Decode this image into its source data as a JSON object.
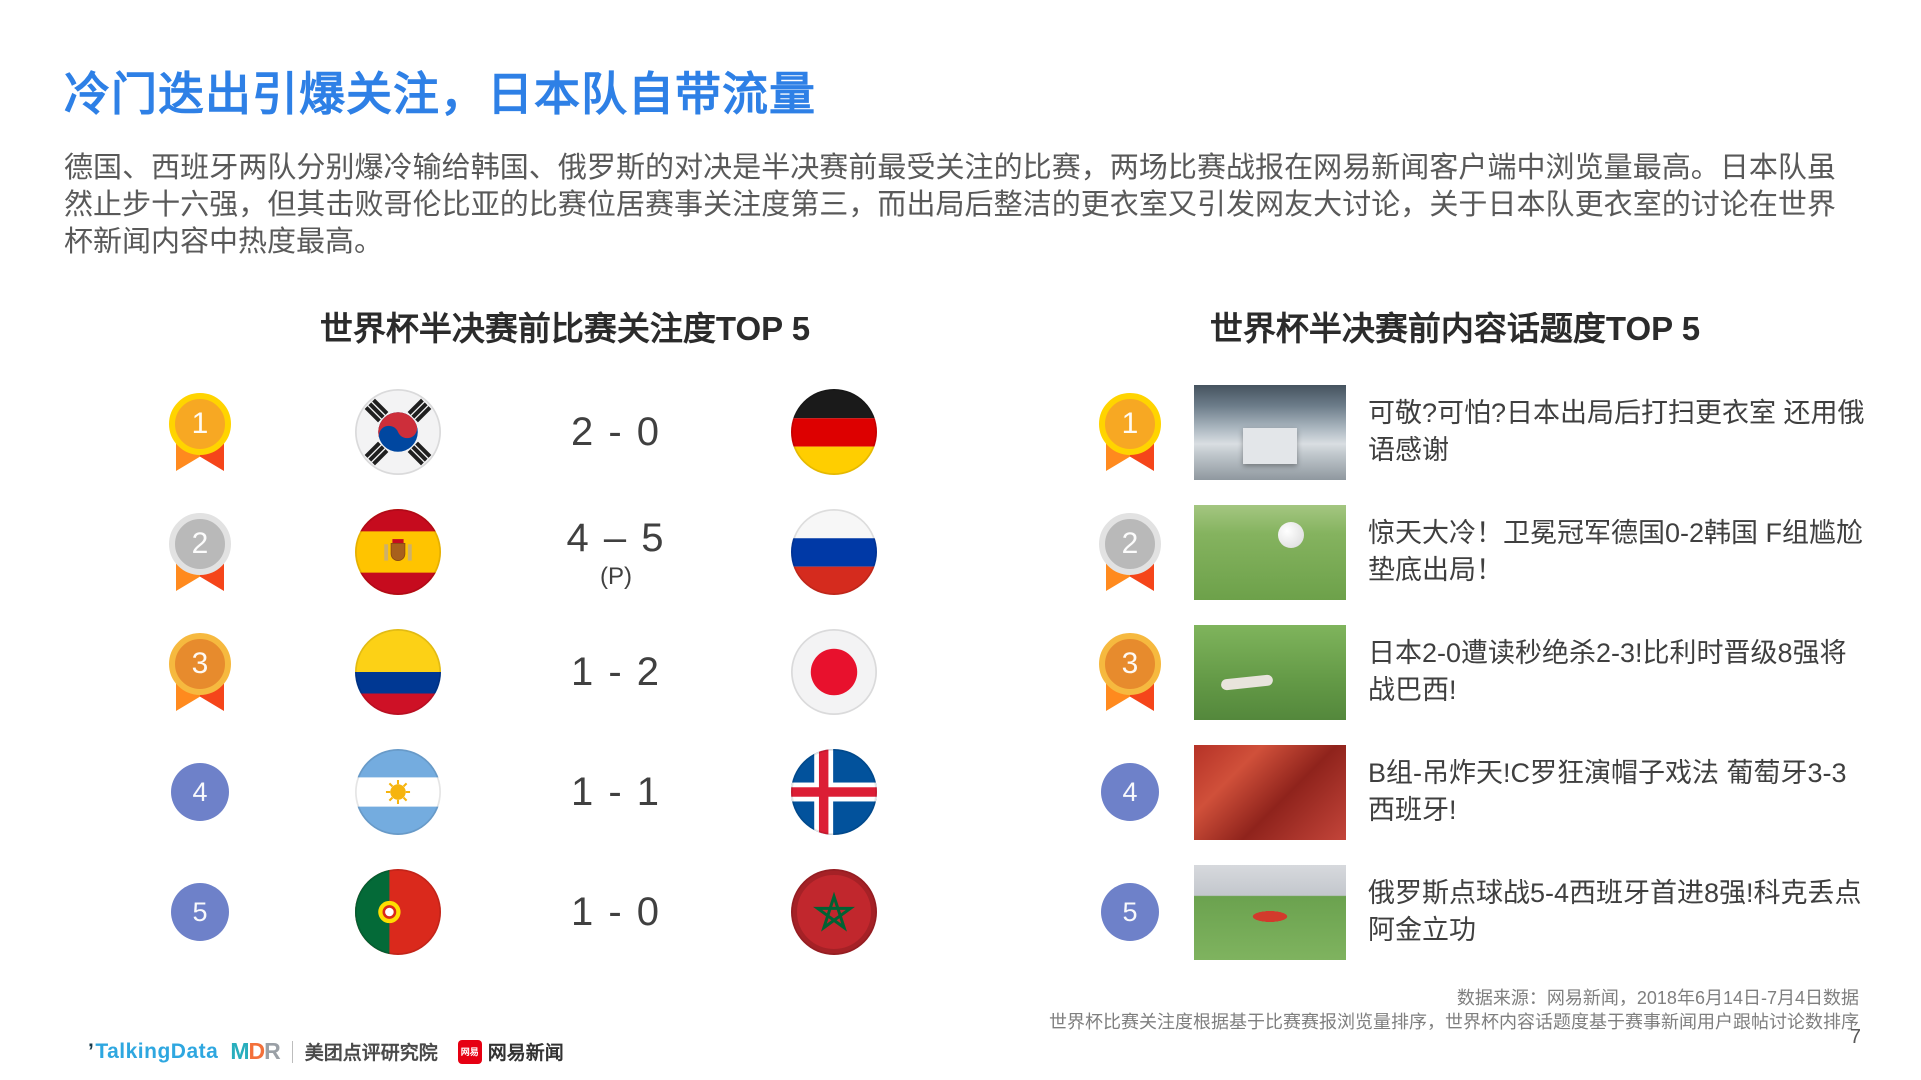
{
  "page": {
    "title": "冷门迭出引爆关注，日本队自带流量",
    "paragraph": "德国、西班牙两队分别爆冷输给韩国、俄罗斯的对决是半决赛前最受关注的比赛，两场比赛战报在网易新闻客户端中浏览量最高。日本队虽然止步十六强，但其击败哥伦比亚的比赛位居赛事关注度第三，而出局后整洁的更衣室又引发网友大讨论，关于日本队更衣室的讨论在世界杯新闻内容中热度最高。",
    "page_number": "7"
  },
  "left_panel": {
    "header": "世界杯半决赛前比赛关注度TOP 5",
    "rows": [
      {
        "rank": "1",
        "medal": "gold-medal-icon",
        "home_flag": "south-korea",
        "score": "2 - 0",
        "score_note": "",
        "away_flag": "germany"
      },
      {
        "rank": "2",
        "medal": "silver-medal-icon",
        "home_flag": "spain",
        "score": "4 – 5",
        "score_note": "(P)",
        "away_flag": "russia"
      },
      {
        "rank": "3",
        "medal": "bronze-medal-icon",
        "home_flag": "colombia",
        "score": "1 - 2",
        "score_note": "",
        "away_flag": "japan"
      },
      {
        "rank": "4",
        "medal": "blue-rank-circle",
        "home_flag": "argentina",
        "score": "1 - 1",
        "score_note": "",
        "away_flag": "iceland"
      },
      {
        "rank": "5",
        "medal": "blue-rank-circle",
        "home_flag": "portugal",
        "score": "1 - 0",
        "score_note": "",
        "away_flag": "morocco"
      }
    ]
  },
  "right_panel": {
    "header": "世界杯半决赛前内容话题度TOP 5",
    "rows": [
      {
        "rank": "1",
        "medal": "gold-medal-icon",
        "thumbnail": "locker-room-photo",
        "headline": "可敬?可怕?日本出局后打扫更衣室 还用俄语感谢"
      },
      {
        "rank": "2",
        "medal": "silver-medal-icon",
        "thumbnail": "germany-korea-match-photo",
        "headline": "惊天大冷！卫冕冠军德国0-2韩国 F组尴尬垫底出局！"
      },
      {
        "rank": "3",
        "medal": "bronze-medal-icon",
        "thumbnail": "japan-belgium-match-photo",
        "headline": "日本2-0遭读秒绝杀2-3!比利时晋级8强将战巴西!"
      },
      {
        "rank": "4",
        "medal": "blue-rank-circle",
        "thumbnail": "portugal-fans-photo",
        "headline": "B组-吊炸天!C罗狂演帽子戏法 葡萄牙3-3西班牙!"
      },
      {
        "rank": "5",
        "medal": "blue-rank-circle",
        "thumbnail": "russia-celebration-photo",
        "headline": "俄罗斯点球战5-4西班牙首进8强!科克丢点阿金立功"
      }
    ]
  },
  "footer": {
    "source_line1": "数据来源：网易新闻，2018年6月14日-7月4日数据",
    "source_line2": "世界杯比赛关注度根据基于比赛赛报浏览量排序，世界杯内容话题度基于赛事新闻用户跟帖讨论数排序",
    "logos": {
      "talkingdata": "TalkingData",
      "mdr_m": "M",
      "mdr_d": "D",
      "mdr_r": "R",
      "meituan": "美团点评研究院",
      "netease_badge": "网易",
      "netease": "网易新闻"
    }
  },
  "colors": {
    "title_blue": "#2e80e6",
    "body_gray": "#595959",
    "gold": "#ffd400",
    "silver": "#e2e2e2",
    "bronze": "#f6b93f",
    "rank_blue": "#6e81c9",
    "ribbon_orange": "#ff8a1e",
    "ribbon_red": "#f5451a"
  }
}
